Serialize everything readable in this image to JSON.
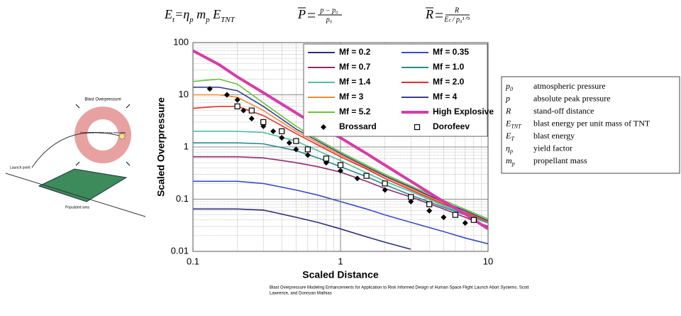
{
  "equations": [
    {
      "segments": [
        {
          "text": "E"
        },
        {
          "text": "t",
          "sub": true
        },
        {
          "text": "=η"
        },
        {
          "text": "p",
          "sub": true
        },
        {
          "text": " m"
        },
        {
          "text": "p",
          "sub": true
        },
        {
          "text": " E"
        },
        {
          "text": "TNT",
          "sub": true
        }
      ]
    },
    {
      "lhs": "P",
      "num": "p − p₀",
      "den": "p₀"
    },
    {
      "lhs": "R",
      "num": "R",
      "den": "Eₜ / p₀¹ᐟ³"
    }
  ],
  "diagram": {
    "ring_label": "Blast Overpressure",
    "inner_label": "Uncertainty in blast radius estimates",
    "launch_label": "Launch point",
    "area_label": "Populated area"
  },
  "definitions": [
    {
      "symbol": "p",
      "sub": "0",
      "text": "atmospheric pressure"
    },
    {
      "symbol": "p",
      "sub": "",
      "text": "absolute peak pressure"
    },
    {
      "symbol": "R",
      "sub": "",
      "text": "stand-off distance"
    },
    {
      "symbol": "E",
      "sub": "TNT",
      "text": "blast energy per unit mass of TNT"
    },
    {
      "symbol": "E",
      "sub": "T",
      "text": "blast energy"
    },
    {
      "symbol": "η",
      "sub": "p",
      "text": "yield factor"
    },
    {
      "symbol": "m",
      "sub": "p",
      "text": "propellant mass"
    }
  ],
  "caption": [
    "Blast Overpressure Modeling Enhancements for Application to Risk Informed Design of Human Space Flight Launch Abort Systems. Scott",
    "Lawrence, and Donovan Mathias"
  ],
  "chart_data": {
    "type": "line",
    "xlabel": "Scaled Distance",
    "ylabel": "Scaled Overpressure",
    "xlog": true,
    "ylog": true,
    "grid": true,
    "minor_grid": true,
    "xlim": [
      0.1,
      10
    ],
    "ylim": [
      0.01,
      100
    ],
    "xticks": [
      0.1,
      1,
      10
    ],
    "yticks": [
      0.01,
      0.1,
      1,
      10,
      100
    ],
    "legend": "top-right",
    "x": [
      0.1,
      0.15,
      0.2,
      0.3,
      0.5,
      0.7,
      1,
      1.5,
      2,
      3,
      5,
      7,
      10
    ],
    "series": [
      {
        "name": "Mf = 0.2",
        "color": "#2b2f7a",
        "values": [
          0.065,
          0.065,
          0.065,
          0.062,
          0.045,
          0.036,
          0.027,
          0.019,
          0.015,
          0.011,
          null,
          null,
          null
        ]
      },
      {
        "name": "Mf = 0.35",
        "color": "#3b4bc0",
        "values": [
          0.22,
          0.22,
          0.22,
          0.2,
          0.15,
          0.12,
          0.09,
          0.065,
          0.05,
          0.036,
          0.024,
          0.018,
          0.014
        ]
      },
      {
        "name": "Mf = 0.7",
        "color": "#8b2c6e",
        "values": [
          0.65,
          0.65,
          0.65,
          0.62,
          0.5,
          0.42,
          0.33,
          0.22,
          0.16,
          0.11,
          0.065,
          0.045,
          0.03
        ]
      },
      {
        "name": "Mf = 1.0",
        "color": "#2a8a8a",
        "values": [
          1.2,
          1.2,
          1.2,
          1.15,
          0.85,
          0.62,
          0.42,
          0.27,
          0.19,
          0.12,
          0.07,
          0.05,
          0.035
        ]
      },
      {
        "name": "Mf = 1.4",
        "color": "#4fbfa0",
        "values": [
          2,
          2,
          2,
          1.9,
          1.3,
          0.85,
          0.55,
          0.32,
          0.22,
          0.14,
          0.075,
          0.052,
          0.036
        ]
      },
      {
        "name": "Mf = 2.0",
        "color": "#e0302a",
        "values": [
          5.5,
          6,
          6,
          4,
          1.8,
          1.1,
          0.65,
          0.38,
          0.25,
          0.15,
          0.08,
          0.055,
          0.037
        ]
      },
      {
        "name": "Mf = 3",
        "color": "#f08a30",
        "values": [
          10,
          10,
          9,
          5,
          2,
          1.2,
          0.7,
          0.4,
          0.27,
          0.16,
          0.085,
          0.058,
          0.038
        ]
      },
      {
        "name": "Mf = 4",
        "color": "#3a3d8f",
        "values": [
          14,
          14,
          12,
          6,
          2.2,
          1.3,
          0.75,
          0.42,
          0.28,
          0.17,
          0.088,
          0.06,
          0.039
        ]
      },
      {
        "name": "Mf = 5.2",
        "color": "#6ac23a",
        "values": [
          18,
          20,
          16,
          7,
          2.5,
          1.4,
          0.8,
          0.45,
          0.3,
          0.18,
          0.095,
          0.064,
          0.042
        ]
      },
      {
        "name": "High Explosive",
        "color": "#d63ca8",
        "line_width": 4,
        "values": [
          70,
          38,
          22,
          11,
          4.5,
          2.5,
          1.5,
          0.75,
          0.45,
          0.22,
          0.09,
          0.052,
          0.027
        ]
      },
      {
        "name": "Brossard",
        "color": "#000000",
        "marker": "diamond",
        "x": [
          0.13,
          0.17,
          0.2,
          0.22,
          0.25,
          0.3,
          0.35,
          0.4,
          0.45,
          0.5,
          0.6,
          0.8,
          1,
          1.3,
          2,
          3,
          4,
          5,
          7
        ],
        "values": [
          13,
          10,
          8,
          5,
          3.5,
          2.5,
          2,
          1.5,
          1.2,
          0.9,
          0.7,
          0.5,
          0.35,
          0.25,
          0.15,
          0.09,
          0.06,
          0.045,
          0.035
        ]
      },
      {
        "name": "Dorofeev",
        "color": "#000000",
        "marker": "square",
        "x": [
          0.2,
          0.25,
          0.3,
          0.4,
          0.5,
          0.6,
          0.8,
          1,
          1.5,
          2,
          3,
          4,
          6,
          8
        ],
        "values": [
          6,
          5,
          3,
          2,
          1.3,
          0.9,
          0.6,
          0.45,
          0.28,
          0.2,
          0.11,
          0.08,
          0.05,
          0.04
        ]
      }
    ]
  }
}
